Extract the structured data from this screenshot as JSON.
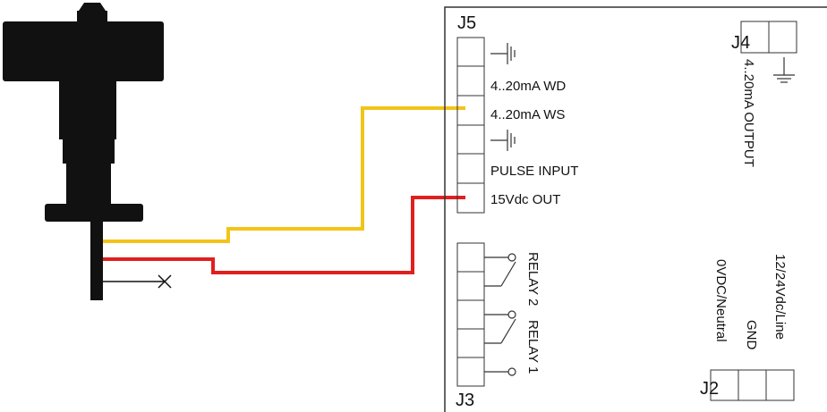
{
  "connectors": {
    "j5": {
      "label": "J5",
      "pins": [
        "",
        "4..20mA WD",
        "4..20mA WS",
        "",
        "PULSE INPUT",
        "15Vdc OUT"
      ]
    },
    "j4": {
      "label": "J4",
      "output_label": "4..20mA OUTPUT"
    },
    "j3": {
      "label": "J3",
      "relay2_label": "RELAY 2",
      "relay1_label": "RELAY 1"
    },
    "j2": {
      "label": "J2",
      "pins": [
        "0VDC/Neutral",
        "GND",
        "12/24Vdc/Line"
      ]
    }
  },
  "symbols": {
    "ground": "ground-icon"
  },
  "colors": {
    "wire_signal": "#f2c418",
    "wire_power": "#e02020",
    "wire_ground": "#111111",
    "sensor_body": "#111111",
    "board_outline": "#333333"
  }
}
